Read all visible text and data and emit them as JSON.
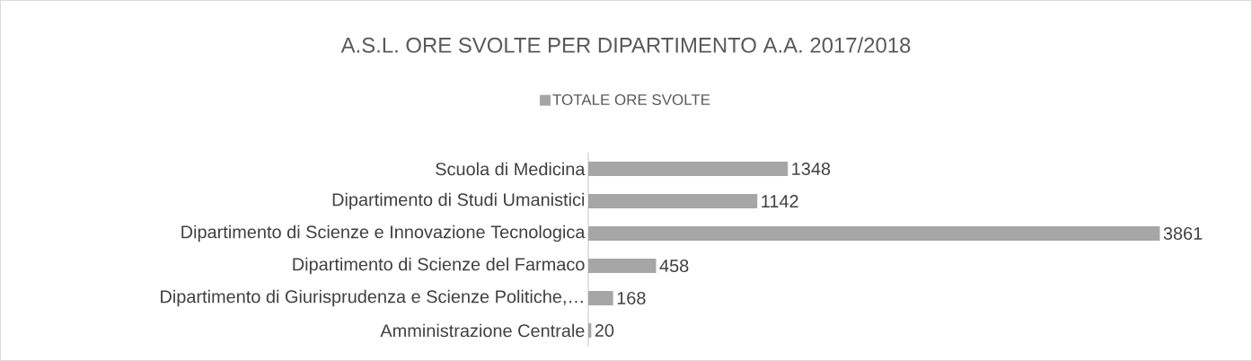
{
  "chart_data": {
    "type": "bar",
    "orientation": "horizontal",
    "title": "A.S.L. ORE SVOLTE PER DIPARTIMENTO A.A. 2017/2018",
    "categories": [
      "Scuola di Medicina",
      "Dipartimento di Studi Umanistici",
      "Dipartimento di Scienze e Innovazione Tecnologica",
      "Dipartimento di Scienze del Farmaco",
      "Dipartimento di Giurisprudenza e Scienze Politiche,…",
      "Amministrazione Centrale"
    ],
    "series": [
      {
        "name": "TOTALE ORE SVOLTE",
        "color": "#a6a6a6",
        "values": [
          1348,
          1142,
          3861,
          458,
          168,
          20
        ]
      }
    ],
    "data_labels": true,
    "legend": "top"
  }
}
